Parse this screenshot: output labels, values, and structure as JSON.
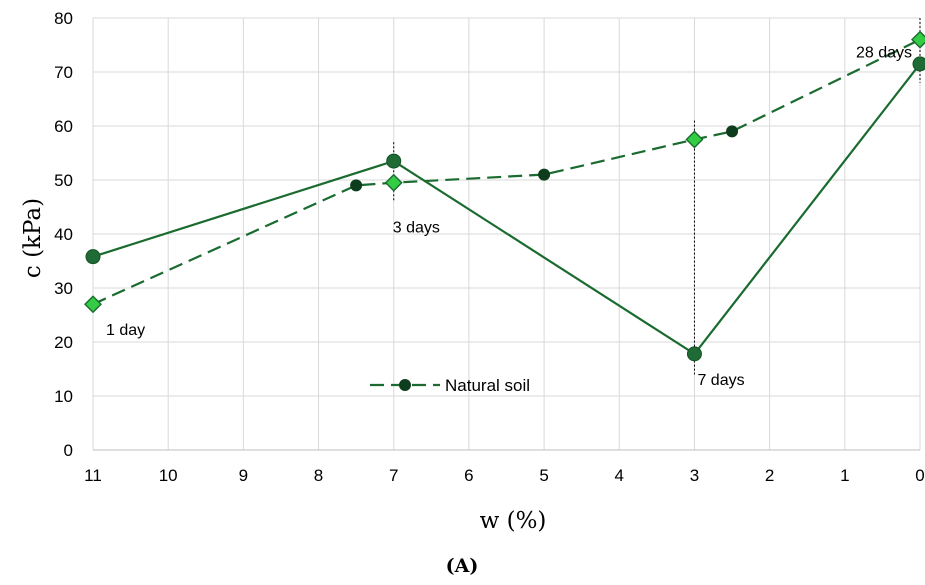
{
  "chart_data": {
    "type": "line",
    "xlabel": "w (%)",
    "ylabel": "c (kPa)",
    "panel_label": "(A)",
    "xlim": [
      11,
      0
    ],
    "x_reversed": true,
    "ylim": [
      0,
      80
    ],
    "x_ticks": [
      11,
      10,
      9,
      8,
      7,
      6,
      5,
      4,
      3,
      2,
      1,
      0
    ],
    "y_ticks": [
      0,
      10,
      20,
      30,
      40,
      50,
      60,
      70,
      80
    ],
    "grid": true,
    "legend_position": "bottom-center",
    "colors": {
      "line": "#1a6b2f",
      "marker_dark": "#1e6b35",
      "marker_natural": "#0d3d1c",
      "diamond": "#33cc44",
      "diamond_edge": "#1a6b2f"
    },
    "series": [
      {
        "style": "solid",
        "marker": "circle",
        "points": [
          {
            "x": 11,
            "y": 35.8
          },
          {
            "x": 7,
            "y": 53.5
          },
          {
            "x": 3,
            "y": 17.8
          },
          {
            "x": 0,
            "y": 71.5
          }
        ]
      },
      {
        "style": "dashed",
        "marker": "diamond",
        "points": [
          {
            "x": 11,
            "y": 27
          },
          {
            "x": 7,
            "y": 49.5
          },
          {
            "x": 3,
            "y": 57.5
          },
          {
            "x": 0,
            "y": 76
          }
        ]
      },
      {
        "name": "Natural soil",
        "style": "dashed",
        "marker": "circle-small",
        "points": [
          {
            "x": 7.5,
            "y": 49
          },
          {
            "x": 5,
            "y": 51
          },
          {
            "x": 2.5,
            "y": 59
          }
        ]
      }
    ],
    "annotations": [
      {
        "text": "1 day",
        "x": 11,
        "y": 27,
        "dropline": false
      },
      {
        "text": "3 days",
        "x": 7,
        "y": 49.5,
        "dropline": true
      },
      {
        "text": "7 days",
        "x": 3,
        "y": 17.8,
        "dropline": true
      },
      {
        "text": "28 days",
        "x": 0,
        "y": 76,
        "dropline": true
      }
    ]
  }
}
